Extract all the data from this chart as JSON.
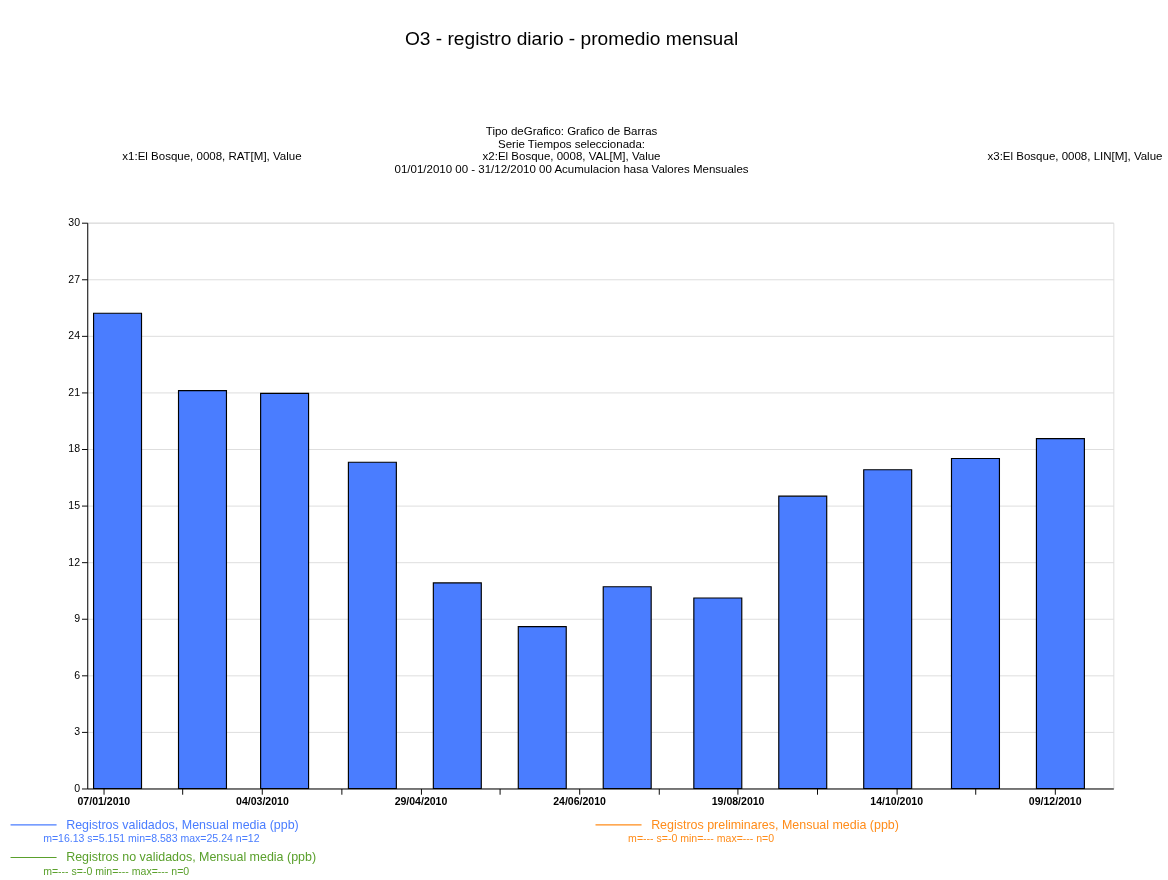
{
  "chart_data": {
    "type": "bar",
    "title": "O3 - registro diario - promedio mensual",
    "subtitle": "Tipo deGrafico: Grafico de Barras\nSerie Tiempos seleccionada:",
    "x": [
      "2010-01-12",
      "2010-02-11",
      "2010-03-12",
      "2010-04-12",
      "2010-05-12",
      "2010-06-11",
      "2010-07-11",
      "2010-08-12",
      "2010-09-11",
      "2010-10-11",
      "2010-11-11",
      "2010-12-11"
    ],
    "series": [
      {
        "name": "Registros validados, Mensual media (ppb)",
        "color": "#4a7dff",
        "values": [
          25.2,
          21.1,
          20.95,
          17.3,
          10.9,
          8.58,
          10.7,
          10.1,
          15.5,
          16.9,
          17.5,
          18.55
        ]
      },
      {
        "name": "Registros no validados, Mensual media (ppb)",
        "color": "#5aa02c",
        "values": [
          null,
          null,
          null,
          null,
          null,
          null,
          null,
          null,
          null,
          null,
          null,
          null
        ]
      },
      {
        "name": "Registros preliminares, Mensual media (ppb)",
        "color": "#ff8c1a",
        "values": [
          null,
          null,
          null,
          null,
          null,
          null,
          null,
          null,
          null,
          null,
          null,
          null
        ]
      }
    ],
    "annotations": [
      "x1:El Bosque, 0008, RAT[M], Value",
      "x2:El Bosque, 0008, VAL[M], Value",
      "x3:El Bosque, 0008, LIN[M], Value",
      "01/01/2010 00 - 31/12/2010 00  Acumulacion hasa Valores Mensuales",
      "m=16.13 s=5.151 min=8.583 max=25.24 n=12",
      "m=--- s=-0 min=--- max=--- n=0",
      "m=--- s=-0 min=--- max=--- n=0"
    ],
    "xlim": [
      "2010-01-03",
      "2010-12-28"
    ],
    "xticks": [
      {
        "value": "2010-01-07",
        "label": "07/01/2010"
      },
      {
        "value": "2010-02-04",
        "label": null
      },
      {
        "value": "2010-03-04",
        "label": "04/03/2010"
      },
      {
        "value": "2010-04-01",
        "label": null
      },
      {
        "value": "2010-04-29",
        "label": "29/04/2010"
      },
      {
        "value": "2010-05-27",
        "label": null
      },
      {
        "value": "2010-06-24",
        "label": "24/06/2010"
      },
      {
        "value": "2010-07-22",
        "label": null
      },
      {
        "value": "2010-08-19",
        "label": "19/08/2010"
      },
      {
        "value": "2010-09-16",
        "label": null
      },
      {
        "value": "2010-10-14",
        "label": "14/10/2010"
      },
      {
        "value": "2010-11-11",
        "label": null
      },
      {
        "value": "2010-12-09",
        "label": "09/12/2010"
      }
    ],
    "ylim": [
      0,
      30
    ],
    "yticks": [
      0,
      3,
      6,
      9,
      12,
      15,
      18,
      21,
      24,
      27,
      30
    ],
    "grid": "y",
    "legend": "bottom"
  }
}
